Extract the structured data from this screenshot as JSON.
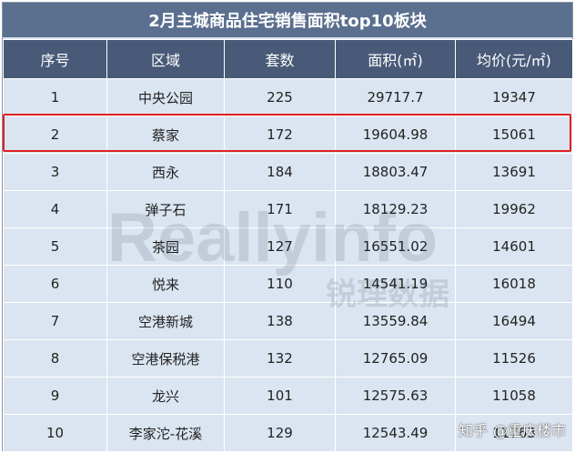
{
  "title": "2月主城商品住宅销售面积top10板块",
  "headers": [
    "序号",
    "区域",
    "套数",
    "面积(㎡)",
    "均价(元/㎡)"
  ],
  "rows": [
    [
      "1",
      "中央公园",
      "225",
      "29717.7",
      "19347"
    ],
    [
      "2",
      "蔡家",
      "172",
      "19604.98",
      "15061"
    ],
    [
      "3",
      "西永",
      "184",
      "18803.47",
      "13691"
    ],
    [
      "4",
      "弹子石",
      "171",
      "18129.23",
      "19962"
    ],
    [
      "5",
      "茶园",
      "127",
      "16551.02",
      "14601"
    ],
    [
      "6",
      "悦来",
      "110",
      "14541.19",
      "16018"
    ],
    [
      "7",
      "空港新城",
      "138",
      "13559.84",
      "16494"
    ],
    [
      "8",
      "空港保税港",
      "132",
      "12765.09",
      "11526"
    ],
    [
      "9",
      "龙兴",
      "101",
      "12575.63",
      "11058"
    ],
    [
      "10",
      "李家沱-花溪",
      "129",
      "12543.49",
      "11763"
    ]
  ],
  "watermark": {
    "logo": "Reallyinfo",
    "cn": "锐理数据"
  },
  "zhihu": {
    "site": "知乎",
    "user": "@重庆楼市"
  },
  "colors": {
    "title_bg": "#5b6f8f",
    "header_bg": "#485a78",
    "cell_bg": "#dbe5f1",
    "highlight": "#e02020"
  }
}
